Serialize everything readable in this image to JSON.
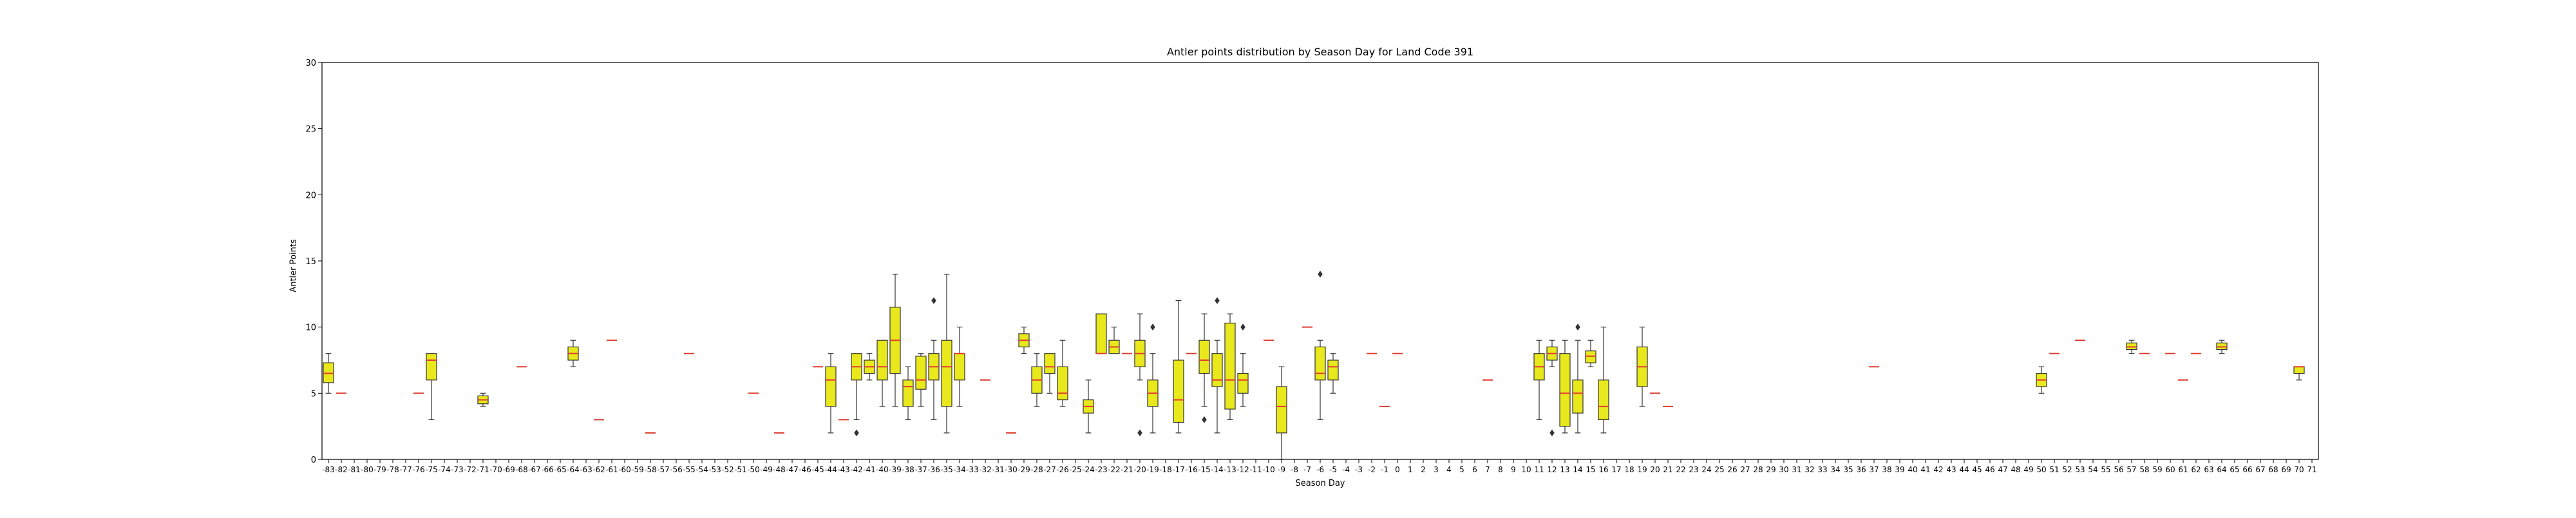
{
  "chart_data": {
    "type": "box",
    "title": "Antler points distribution by Season Day for Land Code 391",
    "xlabel": "Season Day",
    "ylabel": "Antler Points",
    "ylim": [
      0,
      30
    ],
    "yticks": [
      0,
      5,
      10,
      15,
      20,
      25,
      30
    ],
    "x_categories": [
      "-83",
      "-82",
      "-81",
      "-80",
      "-79",
      "-78",
      "-77",
      "-76",
      "-75",
      "-74",
      "-73",
      "-72",
      "-71",
      "-70",
      "-69",
      "-68",
      "-67",
      "-66",
      "-65",
      "-64",
      "-63",
      "-62",
      "-61",
      "-60",
      "-59",
      "-58",
      "-57",
      "-56",
      "-55",
      "-54",
      "-53",
      "-52",
      "-51",
      "-50",
      "-49",
      "-48",
      "-47",
      "-46",
      "-45",
      "-44",
      "-43",
      "-42",
      "-41",
      "-40",
      "-39",
      "-38",
      "-37",
      "-36",
      "-35",
      "-34",
      "-33",
      "-32",
      "-31",
      "-30",
      "-29",
      "-28",
      "-27",
      "-26",
      "-25",
      "-24",
      "-23",
      "-22",
      "-21",
      "-20",
      "-19",
      "-18",
      "-17",
      "-16",
      "-15",
      "-14",
      "-13",
      "-12",
      "-11",
      "-10",
      "-9",
      "-8",
      "-7",
      "-6",
      "-5",
      "-4",
      "-3",
      "-2",
      "-1",
      "0",
      "1",
      "2",
      "3",
      "4",
      "5",
      "6",
      "7",
      "8",
      "9",
      "10",
      "11",
      "12",
      "13",
      "14",
      "15",
      "16",
      "17",
      "18",
      "19",
      "20",
      "21",
      "22",
      "23",
      "24",
      "25",
      "26",
      "27",
      "28",
      "29",
      "30",
      "31",
      "32",
      "33",
      "34",
      "35",
      "36",
      "37",
      "38",
      "39",
      "40",
      "41",
      "42",
      "43",
      "44",
      "45",
      "46",
      "47",
      "48",
      "49",
      "50",
      "51",
      "52",
      "53",
      "54",
      "55",
      "56",
      "57",
      "58",
      "59",
      "60",
      "61",
      "62",
      "63",
      "64",
      "65",
      "66",
      "67",
      "68",
      "69",
      "70",
      "71"
    ],
    "box_color": "#e8e81c",
    "median_color": "#e03c31",
    "boxes": [
      {
        "x": "-83",
        "min": 5,
        "q1": 5.8,
        "med": 6.5,
        "q3": 7.3,
        "max": 8
      },
      {
        "x": "-82",
        "min": 5,
        "q1": 5,
        "med": 5,
        "q3": 5,
        "max": 5
      },
      {
        "x": "-76",
        "min": 5,
        "q1": 5,
        "med": 5,
        "q3": 5,
        "max": 5
      },
      {
        "x": "-75",
        "min": 3,
        "q1": 6,
        "med": 7.5,
        "q3": 8,
        "max": 8
      },
      {
        "x": "-71",
        "min": 4,
        "q1": 4.2,
        "med": 4.5,
        "q3": 4.8,
        "max": 5
      },
      {
        "x": "-68",
        "min": 7,
        "q1": 7,
        "med": 7,
        "q3": 7,
        "max": 7
      },
      {
        "x": "-64",
        "min": 7,
        "q1": 7.5,
        "med": 8,
        "q3": 8.5,
        "max": 9
      },
      {
        "x": "-62",
        "min": 3,
        "q1": 3,
        "med": 3,
        "q3": 3,
        "max": 3
      },
      {
        "x": "-61",
        "min": 9,
        "q1": 9,
        "med": 9,
        "q3": 9,
        "max": 9
      },
      {
        "x": "-58",
        "min": 2,
        "q1": 2,
        "med": 2,
        "q3": 2,
        "max": 2
      },
      {
        "x": "-55",
        "min": 8,
        "q1": 8,
        "med": 8,
        "q3": 8,
        "max": 8
      },
      {
        "x": "-50",
        "min": 5,
        "q1": 5,
        "med": 5,
        "q3": 5,
        "max": 5
      },
      {
        "x": "-48",
        "min": 2,
        "q1": 2,
        "med": 2,
        "q3": 2,
        "max": 2
      },
      {
        "x": "-45",
        "min": 7,
        "q1": 7,
        "med": 7,
        "q3": 7,
        "max": 7
      },
      {
        "x": "-44",
        "min": 2,
        "q1": 4,
        "med": 6,
        "q3": 7,
        "max": 8
      },
      {
        "x": "-43",
        "min": 3,
        "q1": 3,
        "med": 3,
        "q3": 3,
        "max": 3
      },
      {
        "x": "-42",
        "min": 3,
        "q1": 6,
        "med": 7,
        "q3": 8,
        "max": 8,
        "outliers": [
          2
        ]
      },
      {
        "x": "-41",
        "min": 6,
        "q1": 6.5,
        "med": 7,
        "q3": 7.5,
        "max": 8
      },
      {
        "x": "-40",
        "min": 4,
        "q1": 6,
        "med": 7,
        "q3": 9,
        "max": 9
      },
      {
        "x": "-39",
        "min": 4,
        "q1": 6.5,
        "med": 9,
        "q3": 11.5,
        "max": 14
      },
      {
        "x": "-38",
        "min": 3,
        "q1": 4,
        "med": 5.5,
        "q3": 6,
        "max": 7
      },
      {
        "x": "-37",
        "min": 4,
        "q1": 5.3,
        "med": 6,
        "q3": 7.8,
        "max": 8
      },
      {
        "x": "-36",
        "min": 3,
        "q1": 6,
        "med": 7,
        "q3": 8,
        "max": 9,
        "outliers": [
          12
        ]
      },
      {
        "x": "-35",
        "min": 2,
        "q1": 4,
        "med": 7,
        "q3": 9,
        "max": 14
      },
      {
        "x": "-34",
        "min": 4,
        "q1": 6,
        "med": 8,
        "q3": 8,
        "max": 10
      },
      {
        "x": "-32",
        "min": 6,
        "q1": 6,
        "med": 6,
        "q3": 6,
        "max": 6
      },
      {
        "x": "-30",
        "min": 2,
        "q1": 2,
        "med": 2,
        "q3": 2,
        "max": 2
      },
      {
        "x": "-29",
        "min": 8,
        "q1": 8.5,
        "med": 9,
        "q3": 9.5,
        "max": 10
      },
      {
        "x": "-28",
        "min": 4,
        "q1": 5,
        "med": 6,
        "q3": 7,
        "max": 8
      },
      {
        "x": "-27",
        "min": 5,
        "q1": 6.5,
        "med": 7,
        "q3": 8,
        "max": 8
      },
      {
        "x": "-26",
        "min": 4,
        "q1": 4.5,
        "med": 5,
        "q3": 7,
        "max": 9
      },
      {
        "x": "-24",
        "min": 2,
        "q1": 3.5,
        "med": 4,
        "q3": 4.5,
        "max": 6
      },
      {
        "x": "-23",
        "min": 8,
        "q1": 8,
        "med": 8,
        "q3": 11,
        "max": 11
      },
      {
        "x": "-22",
        "min": 8,
        "q1": 8,
        "med": 8.5,
        "q3": 9,
        "max": 10
      },
      {
        "x": "-21",
        "min": 8,
        "q1": 8,
        "med": 8,
        "q3": 8,
        "max": 8
      },
      {
        "x": "-20",
        "min": 6,
        "q1": 7,
        "med": 8,
        "q3": 9,
        "max": 11,
        "outliers": [
          2
        ]
      },
      {
        "x": "-19",
        "min": 2,
        "q1": 4,
        "med": 5,
        "q3": 6,
        "max": 8,
        "outliers": [
          10
        ]
      },
      {
        "x": "-17",
        "min": 2,
        "q1": 2.8,
        "med": 4.5,
        "q3": 7.5,
        "max": 12
      },
      {
        "x": "-16",
        "min": 8,
        "q1": 8,
        "med": 8,
        "q3": 8,
        "max": 8
      },
      {
        "x": "-15",
        "min": 4,
        "q1": 6.5,
        "med": 7.5,
        "q3": 9,
        "max": 11,
        "outliers": [
          3
        ]
      },
      {
        "x": "-14",
        "min": 2,
        "q1": 5.5,
        "med": 6,
        "q3": 8,
        "max": 9,
        "outliers": [
          12
        ]
      },
      {
        "x": "-13",
        "min": 3,
        "q1": 3.8,
        "med": 6,
        "q3": 10.3,
        "max": 11
      },
      {
        "x": "-12",
        "min": 4,
        "q1": 5,
        "med": 6,
        "q3": 6.5,
        "max": 8,
        "outliers": [
          10
        ]
      },
      {
        "x": "-10",
        "min": 9,
        "q1": 9,
        "med": 9,
        "q3": 9,
        "max": 9
      },
      {
        "x": "-9",
        "min": 0,
        "q1": 2,
        "med": 4,
        "q3": 5.5,
        "max": 7
      },
      {
        "x": "-7",
        "min": 10,
        "q1": 10,
        "med": 10,
        "q3": 10,
        "max": 10
      },
      {
        "x": "-6",
        "min": 3,
        "q1": 6,
        "med": 6.5,
        "q3": 8.5,
        "max": 9,
        "outliers": [
          14
        ]
      },
      {
        "x": "-5",
        "min": 5,
        "q1": 6,
        "med": 7,
        "q3": 7.5,
        "max": 8
      },
      {
        "x": "-2",
        "min": 8,
        "q1": 8,
        "med": 8,
        "q3": 8,
        "max": 8
      },
      {
        "x": "-1",
        "min": 4,
        "q1": 4,
        "med": 4,
        "q3": 4,
        "max": 4
      },
      {
        "x": "0",
        "min": 8,
        "q1": 8,
        "med": 8,
        "q3": 8,
        "max": 8
      },
      {
        "x": "7",
        "min": 6,
        "q1": 6,
        "med": 6,
        "q3": 6,
        "max": 6
      },
      {
        "x": "11",
        "min": 3,
        "q1": 6,
        "med": 7,
        "q3": 8,
        "max": 9
      },
      {
        "x": "12",
        "min": 7,
        "q1": 7.5,
        "med": 8,
        "q3": 8.5,
        "max": 9,
        "outliers": [
          2
        ]
      },
      {
        "x": "13",
        "min": 2,
        "q1": 2.5,
        "med": 5,
        "q3": 8,
        "max": 9
      },
      {
        "x": "14",
        "min": 2,
        "q1": 3.5,
        "med": 5,
        "q3": 6,
        "max": 9,
        "outliers": [
          10
        ]
      },
      {
        "x": "15",
        "min": 7,
        "q1": 7.3,
        "med": 7.8,
        "q3": 8.2,
        "max": 9
      },
      {
        "x": "16",
        "min": 2,
        "q1": 3,
        "med": 4,
        "q3": 6,
        "max": 10
      },
      {
        "x": "19",
        "min": 4,
        "q1": 5.5,
        "med": 7,
        "q3": 8.5,
        "max": 10
      },
      {
        "x": "20",
        "min": 5,
        "q1": 5,
        "med": 5,
        "q3": 5,
        "max": 5
      },
      {
        "x": "21",
        "min": 4,
        "q1": 4,
        "med": 4,
        "q3": 4,
        "max": 4
      },
      {
        "x": "37",
        "min": 7,
        "q1": 7,
        "med": 7,
        "q3": 7,
        "max": 7
      },
      {
        "x": "50",
        "min": 5,
        "q1": 5.5,
        "med": 6,
        "q3": 6.5,
        "max": 7
      },
      {
        "x": "51",
        "min": 8,
        "q1": 8,
        "med": 8,
        "q3": 8,
        "max": 8
      },
      {
        "x": "53",
        "min": 9,
        "q1": 9,
        "med": 9,
        "q3": 9,
        "max": 9
      },
      {
        "x": "57",
        "min": 8,
        "q1": 8.3,
        "med": 8.5,
        "q3": 8.8,
        "max": 9
      },
      {
        "x": "58",
        "min": 8,
        "q1": 8,
        "med": 8,
        "q3": 8,
        "max": 8
      },
      {
        "x": "60",
        "min": 8,
        "q1": 8,
        "med": 8,
        "q3": 8,
        "max": 8
      },
      {
        "x": "61",
        "min": 6,
        "q1": 6,
        "med": 6,
        "q3": 6,
        "max": 6
      },
      {
        "x": "62",
        "min": 8,
        "q1": 8,
        "med": 8,
        "q3": 8,
        "max": 8
      },
      {
        "x": "64",
        "min": 8,
        "q1": 8.3,
        "med": 8.5,
        "q3": 8.8,
        "max": 9
      },
      {
        "x": "70",
        "min": 6,
        "q1": 6.5,
        "med": 7,
        "q3": 7,
        "max": 7
      }
    ],
    "grid": false,
    "legend": "none"
  }
}
